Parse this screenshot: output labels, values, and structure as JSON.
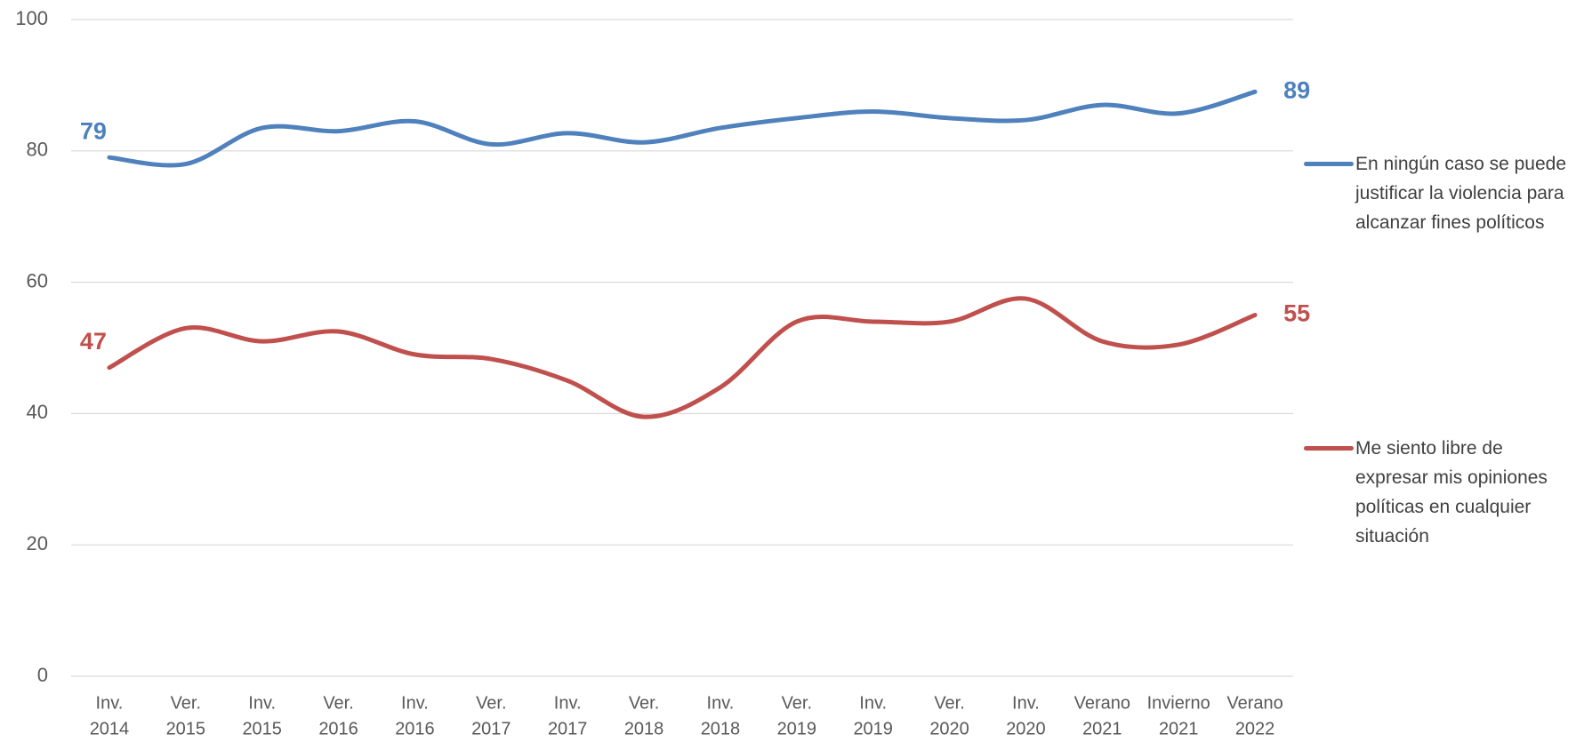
{
  "chart_data": {
    "type": "line",
    "categories": [
      [
        "Inv.",
        "2014"
      ],
      [
        "Ver.",
        "2015"
      ],
      [
        "Inv.",
        "2015"
      ],
      [
        "Ver.",
        "2016"
      ],
      [
        "Inv.",
        "2016"
      ],
      [
        "Ver.",
        "2017"
      ],
      [
        "Inv.",
        "2017"
      ],
      [
        "Ver.",
        "2018"
      ],
      [
        "Inv.",
        "2018"
      ],
      [
        "Ver.",
        "2019"
      ],
      [
        "Inv.",
        "2019"
      ],
      [
        "Ver.",
        "2020"
      ],
      [
        "Inv.",
        "2020"
      ],
      [
        "Verano",
        "2021"
      ],
      [
        "Invierno",
        "2021"
      ],
      [
        "Verano",
        "2022"
      ]
    ],
    "series": [
      {
        "name": "En ningún caso se puede justificar la violencia para alcanzar fines políticos",
        "color": "#4f81bd",
        "values": [
          79,
          78,
          83.5,
          83,
          84.5,
          81,
          82.7,
          81.3,
          83.5,
          85,
          86,
          85,
          84.7,
          87,
          85.7,
          89
        ]
      },
      {
        "name": "Me siento libre de expresar mis opiniones políticas en cualquier situación",
        "color": "#c0504d",
        "values": [
          47,
          53,
          51,
          52.5,
          49,
          48.3,
          45,
          39.5,
          44,
          54,
          54,
          54,
          57.5,
          51,
          50.5,
          55
        ]
      }
    ],
    "data_labels": "ends",
    "smooth": true,
    "ylim": [
      0,
      100
    ],
    "yticks": [
      0,
      20,
      40,
      60,
      80,
      100
    ],
    "grid": true,
    "legend": "right"
  }
}
